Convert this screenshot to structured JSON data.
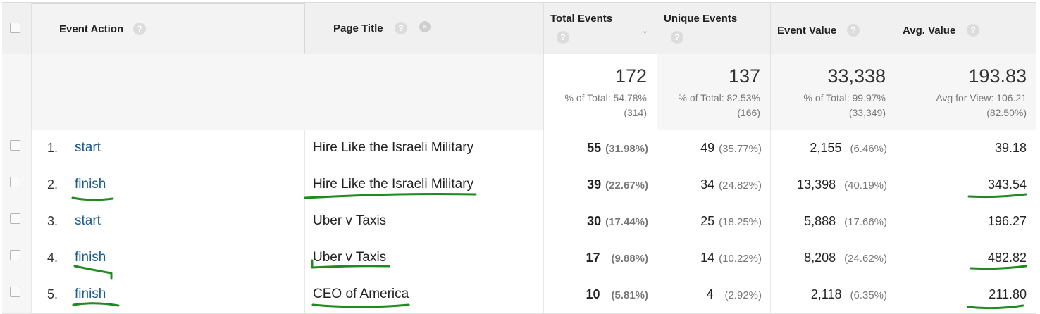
{
  "header": {
    "event_action": "Event Action",
    "page_title": "Page Title",
    "total_events": "Total Events",
    "unique_events": "Unique Events",
    "event_value": "Event Value",
    "avg_value": "Avg. Value",
    "help_glyph": "?",
    "remove_glyph": "×",
    "sort_glyph": "↓"
  },
  "totals": {
    "total_events": {
      "value": "172",
      "line1": "% of Total: 54.78%",
      "line2": "(314)"
    },
    "unique_events": {
      "value": "137",
      "line1": "% of Total: 82.53%",
      "line2": "(166)"
    },
    "event_value": {
      "value": "33,338",
      "line1": "% of Total: 99.97%",
      "line2": "(33,349)"
    },
    "avg_value": {
      "value": "193.83",
      "line1": "Avg for View: 106.21",
      "line2": "(82.50%)"
    }
  },
  "rows": [
    {
      "index": "1.",
      "action": "start",
      "page": "Hire Like the Israeli Military",
      "total": "55",
      "total_pct": "(31.98%)",
      "unique": "49",
      "unique_pct": "(35.77%)",
      "value": "2,155",
      "value_pct": "(6.46%)",
      "avg": "39.18"
    },
    {
      "index": "2.",
      "action": "finish",
      "page": "Hire Like the Israeli Military",
      "total": "39",
      "total_pct": "(22.67%)",
      "unique": "34",
      "unique_pct": "(24.82%)",
      "value": "13,398",
      "value_pct": "(40.19%)",
      "avg": "343.54"
    },
    {
      "index": "3.",
      "action": "start",
      "page": "Uber v Taxis",
      "total": "30",
      "total_pct": "(17.44%)",
      "unique": "25",
      "unique_pct": "(18.25%)",
      "value": "5,888",
      "value_pct": "(17.66%)",
      "avg": "196.27"
    },
    {
      "index": "4.",
      "action": "finish",
      "page": "Uber v Taxis",
      "total": "17",
      "total_pct": "(9.88%)",
      "unique": "14",
      "unique_pct": "(10.22%)",
      "value": "8,208",
      "value_pct": "(24.62%)",
      "avg": "482.82"
    },
    {
      "index": "5.",
      "action": "finish",
      "page": "CEO of America",
      "total": "10",
      "total_pct": "(5.81%)",
      "unique": "4",
      "unique_pct": "(2.92%)",
      "value": "2,118",
      "value_pct": "(6.35%)",
      "avg": "211.80"
    }
  ],
  "annotation_color": "#1f8a1f"
}
